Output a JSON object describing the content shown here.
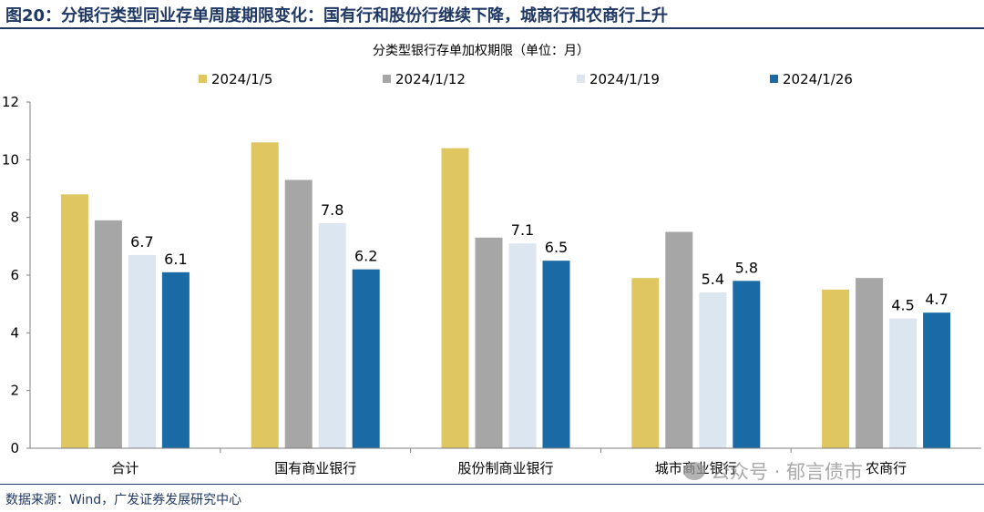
{
  "figure": {
    "title": "图20：分银行类型同业存单周度期限变化：国有行和股份行继续下降，城商行和农商行上升",
    "source": "数据来源：Wind，广发证券发展研究中心",
    "watermark": "公众号 · 郁言债市"
  },
  "chart_data": {
    "type": "bar",
    "title": "分类型银行存单加权期限（单位：月）",
    "xlabel": "",
    "ylabel": "",
    "ylim": [
      0,
      12
    ],
    "yticks": [
      0,
      2,
      4,
      6,
      8,
      10,
      12
    ],
    "categories": [
      "合计",
      "国有商业银行",
      "股份制商业银行",
      "城市商业银行",
      "农商行"
    ],
    "series": [
      {
        "name": "2024/1/5",
        "color": "#e0c661",
        "values": [
          8.8,
          10.6,
          10.4,
          5.9,
          5.5
        ],
        "labels": false
      },
      {
        "name": "2024/1/12",
        "color": "#a6a6a6",
        "values": [
          7.9,
          9.3,
          7.3,
          7.5,
          5.9
        ],
        "labels": false
      },
      {
        "name": "2024/1/19",
        "color": "#dce6f0",
        "values": [
          6.7,
          7.8,
          7.1,
          5.4,
          4.5
        ],
        "labels": true
      },
      {
        "name": "2024/1/26",
        "color": "#1a6aa6",
        "values": [
          6.1,
          6.2,
          6.5,
          5.8,
          4.7
        ],
        "labels": true
      }
    ],
    "grid": false,
    "legend_position": "top"
  }
}
